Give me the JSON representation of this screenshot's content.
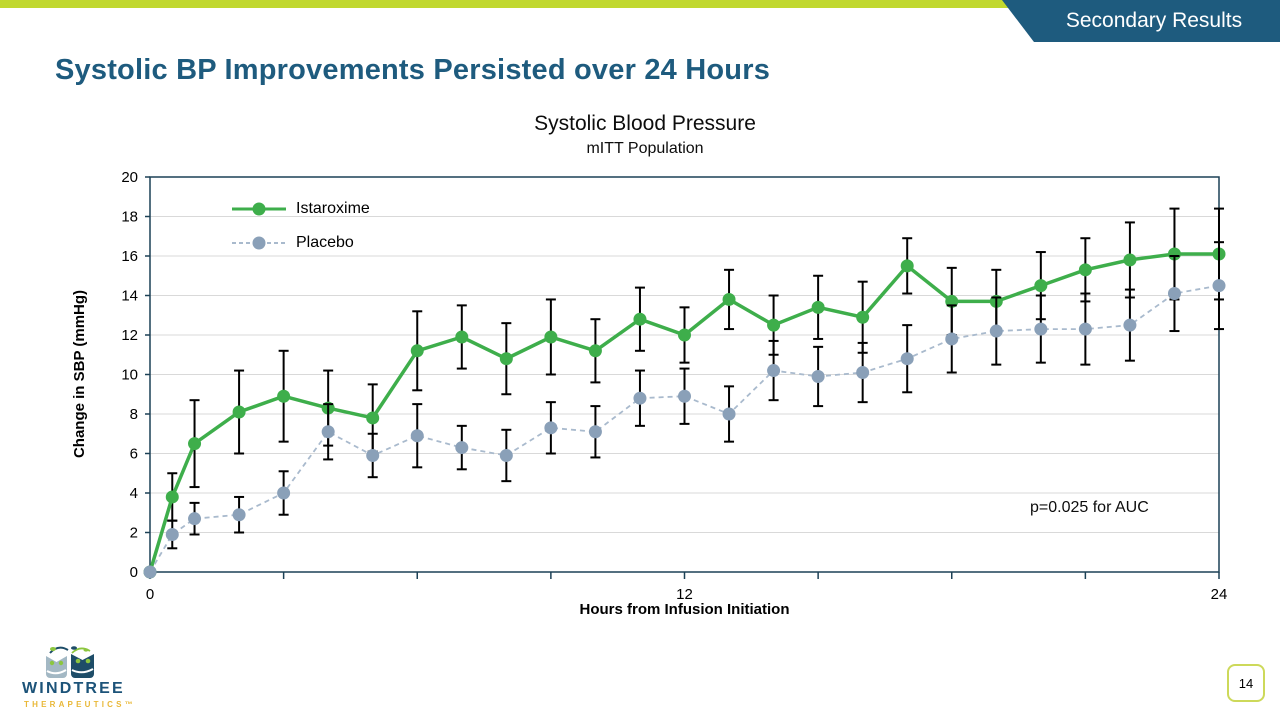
{
  "header": {
    "banner": "Secondary Results",
    "title": "Systolic BP Improvements Persisted over 24 Hours"
  },
  "theme": {
    "accent_green": "#c1d82f",
    "banner_blue": "#1e5b7e",
    "title_blue": "#1e5b7e",
    "page_badge_border": "#cdd95a"
  },
  "chart_data": {
    "type": "line",
    "title": "Systolic Blood Pressure",
    "subtitle": "mITT Population",
    "xlabel": "Hours from Infusion Initiation",
    "ylabel": "Change in SBP (mmHg)",
    "annotation": "p=0.025 for AUC",
    "xlim": [
      0,
      24
    ],
    "ylim": [
      0,
      20
    ],
    "x_major_ticks": [
      0,
      12,
      24
    ],
    "x_minor_tick_step": 3,
    "y_ticks": [
      0,
      2,
      4,
      6,
      8,
      10,
      12,
      14,
      16,
      18,
      20
    ],
    "grid": "horizontal",
    "legend_position": "top-left-inside",
    "colors": {
      "grid": "#d9d9d9",
      "axis": "#1c4156",
      "error_bar": "#000000"
    },
    "x": [
      0,
      0.5,
      1,
      2,
      3,
      4,
      5,
      6,
      7,
      8,
      9,
      10,
      11,
      12,
      13,
      14,
      15,
      16,
      17,
      18,
      19,
      20,
      21,
      22,
      23,
      24
    ],
    "series": [
      {
        "name": "Istaroxime",
        "line_color": "#3eae4b",
        "marker_color": "#3eae4b",
        "line_width": 3.5,
        "dash": null,
        "values": [
          0,
          3.8,
          6.5,
          8.1,
          8.9,
          8.3,
          7.8,
          11.2,
          11.9,
          10.8,
          11.9,
          11.2,
          12.8,
          12.0,
          13.8,
          12.5,
          13.4,
          12.9,
          15.5,
          13.7,
          13.7,
          14.5,
          15.3,
          15.8,
          16.1,
          16.1
        ],
        "errors": [
          0,
          1.2,
          2.2,
          2.1,
          2.3,
          1.9,
          1.7,
          2.0,
          1.6,
          1.8,
          1.9,
          1.6,
          1.6,
          1.4,
          1.5,
          1.5,
          1.6,
          1.8,
          1.4,
          1.7,
          1.6,
          1.7,
          1.6,
          1.9,
          2.3,
          2.3
        ]
      },
      {
        "name": "Placebo",
        "line_color": "#a9bacd",
        "marker_color": "#8aa0b8",
        "line_width": 1.8,
        "dash": "5 4",
        "values": [
          0,
          1.9,
          2.7,
          2.9,
          4.0,
          7.1,
          5.9,
          6.9,
          6.3,
          5.9,
          7.3,
          7.1,
          8.8,
          8.9,
          8.0,
          10.2,
          9.9,
          10.1,
          10.8,
          11.8,
          12.2,
          12.3,
          12.3,
          12.5,
          14.1,
          14.5
        ],
        "errors": [
          0,
          0.7,
          0.8,
          0.9,
          1.1,
          1.4,
          1.1,
          1.6,
          1.1,
          1.3,
          1.3,
          1.3,
          1.4,
          1.4,
          1.4,
          1.5,
          1.5,
          1.5,
          1.7,
          1.7,
          1.7,
          1.7,
          1.8,
          1.8,
          1.9,
          2.2
        ]
      }
    ]
  },
  "footer": {
    "logo_name": "WINDTREE",
    "logo_sub": "THERAPEUTICS™",
    "page_number": "14"
  }
}
